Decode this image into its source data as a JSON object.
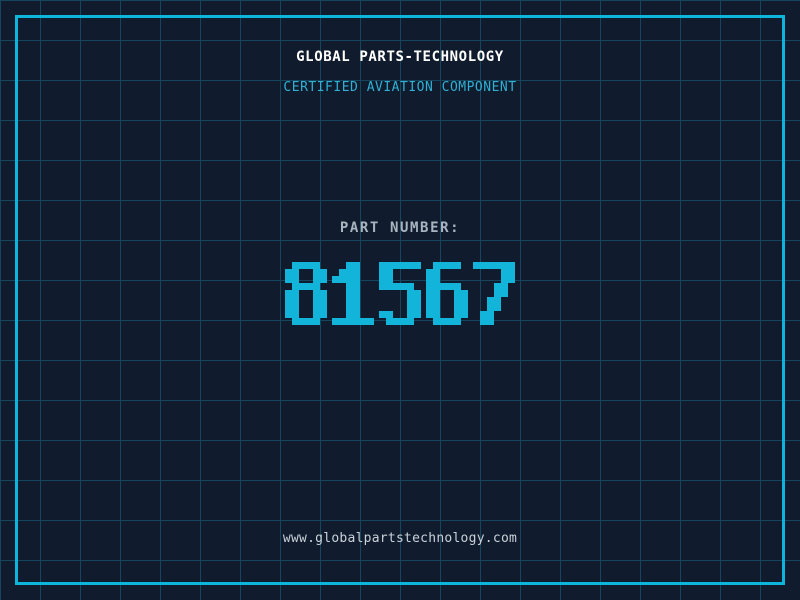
{
  "brand": {
    "title": "GLOBAL PARTS-TECHNOLOGY",
    "subtitle": "CERTIFIED AVIATION COMPONENT"
  },
  "part": {
    "label": "PART NUMBER:",
    "number": "81567"
  },
  "footer": {
    "url": "www.globalpartstechnology.com"
  },
  "colors": {
    "bg": "#101b2d",
    "grid": "#16465e",
    "frame": "#0db5dd",
    "accent": "#12b5d9",
    "title": "#ffffff",
    "subtitle": "#2fb0d4",
    "label": "#a9b4c0",
    "url": "#c9d2da"
  }
}
